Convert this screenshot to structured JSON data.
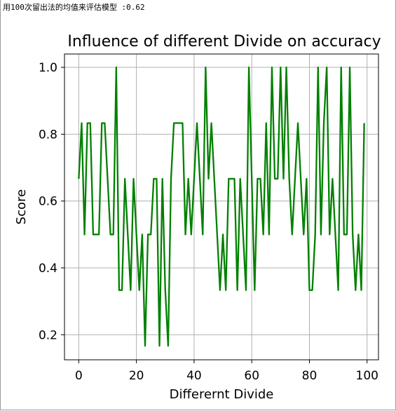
{
  "console": {
    "text": "用100次留出法的均值来评估模型 :0.62"
  },
  "colors": {
    "line": "#008000",
    "grid": "#b0b0b0",
    "axis": "#000000",
    "background": "#ffffff"
  },
  "chart_data": {
    "type": "line",
    "title": "Influence of different Divide on accuracy",
    "xlabel": "Differernt  Divide",
    "ylabel": "Score",
    "xlim": [
      -4.95,
      103.95
    ],
    "ylim": [
      0.125,
      1.04
    ],
    "xticks": [
      0,
      20,
      40,
      60,
      80,
      100
    ],
    "yticks": [
      0.2,
      0.4,
      0.6,
      0.8,
      1.0
    ],
    "xtick_labels": [
      "0",
      "20",
      "40",
      "60",
      "80",
      "100"
    ],
    "ytick_labels": [
      "0.2",
      "0.4",
      "0.6",
      "0.8",
      "1.0"
    ],
    "grid": true,
    "series": [
      {
        "x": [
          0,
          1,
          2,
          3,
          4,
          5,
          6,
          7,
          8,
          9,
          10,
          11,
          12,
          13,
          14,
          15,
          16,
          17,
          18,
          19,
          20,
          21,
          22,
          23,
          24,
          25,
          26,
          27,
          28,
          29,
          30,
          31,
          32,
          33,
          34,
          35,
          36,
          37,
          38,
          39,
          40,
          41,
          42,
          43,
          44,
          45,
          46,
          47,
          48,
          49,
          50,
          51,
          52,
          53,
          54,
          55,
          56,
          57,
          58,
          59,
          60,
          61,
          62,
          63,
          64,
          65,
          66,
          67,
          68,
          69,
          70,
          71,
          72,
          73,
          74,
          75,
          76,
          77,
          78,
          79,
          80,
          81,
          82,
          83,
          84,
          85,
          86,
          87,
          88,
          89,
          90,
          91,
          92,
          93,
          94,
          95,
          96,
          97,
          98,
          99
        ],
        "values": [
          0.6667,
          0.8333,
          0.5,
          0.8333,
          0.8333,
          0.5,
          0.5,
          0.5,
          0.8333,
          0.8333,
          0.6667,
          0.5,
          0.5,
          1.0,
          0.3333,
          0.3333,
          0.6667,
          0.5,
          0.3333,
          0.6667,
          0.5,
          0.3333,
          0.5,
          0.1667,
          0.5,
          0.5,
          0.6667,
          0.6667,
          0.1667,
          0.6667,
          0.3333,
          0.1667,
          0.6667,
          0.8333,
          0.8333,
          0.8333,
          0.8333,
          0.5,
          0.6667,
          0.5,
          0.6667,
          0.8333,
          0.6667,
          0.5,
          1.0,
          0.6667,
          0.8333,
          0.6667,
          0.5,
          0.3333,
          0.5,
          0.3333,
          0.6667,
          0.6667,
          0.6667,
          0.3333,
          0.6667,
          0.5,
          0.3333,
          1.0,
          0.6667,
          0.3333,
          0.6667,
          0.6667,
          0.5,
          0.8333,
          0.5,
          1.0,
          0.6667,
          0.6667,
          1.0,
          0.6667,
          1.0,
          0.6667,
          0.5,
          0.6667,
          0.8333,
          0.6667,
          0.5,
          0.6667,
          0.3333,
          0.3333,
          0.5,
          1.0,
          0.5,
          0.8333,
          1.0,
          0.5,
          0.6667,
          0.5,
          0.3333,
          1.0,
          0.5,
          0.5,
          1.0,
          0.5,
          0.3333,
          0.5,
          0.3333,
          0.8333
        ]
      }
    ]
  }
}
